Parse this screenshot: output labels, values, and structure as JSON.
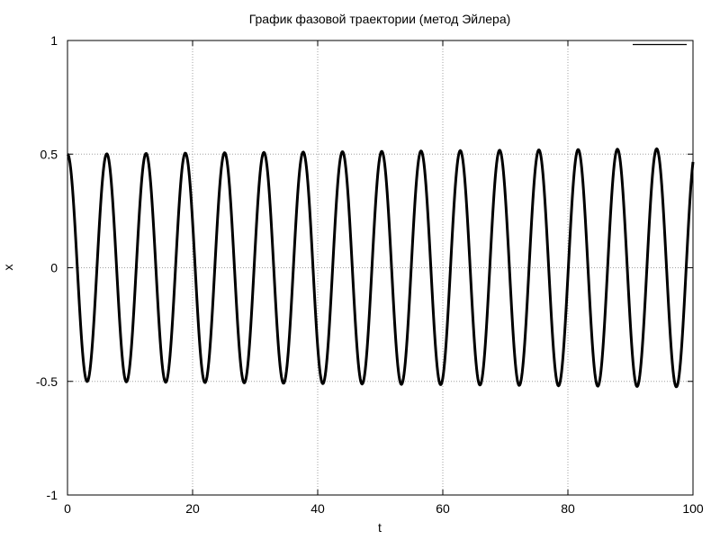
{
  "chart_data": {
    "type": "line",
    "title": "График фазовой траектории (метод Эйлера)",
    "xlabel": "t",
    "ylabel": "x",
    "xlim": [
      0,
      100
    ],
    "ylim": [
      -1,
      1
    ],
    "x_ticks": [
      0,
      20,
      40,
      60,
      80,
      100
    ],
    "y_ticks": [
      -1,
      -0.5,
      0,
      0.5,
      1
    ],
    "x_tick_labels": [
      "0",
      "20",
      "40",
      "60",
      "80",
      "100"
    ],
    "y_tick_labels": [
      "-1",
      "-0.5",
      "0",
      "0.5",
      "1"
    ],
    "grid": true,
    "legend": "top-right",
    "series_color": "#000000",
    "series": [
      {
        "x0": 0,
        "dt": 0.1,
        "peak_times": [
          0,
          6.28,
          12.57,
          18.85,
          25.13,
          31.42,
          37.7,
          43.98,
          50.27,
          56.55,
          62.83,
          69.12,
          75.4,
          81.68,
          87.96,
          94.25
        ],
        "trough_times": [
          3.14,
          9.42,
          15.71,
          21.99,
          28.27,
          34.56,
          40.84,
          47.12,
          53.41,
          59.69,
          65.97,
          72.26,
          78.54,
          84.82,
          91.11,
          97.39
        ],
        "start_value": 0.5,
        "end_amplitude": 0.525,
        "end_value": 0.45
      }
    ]
  }
}
